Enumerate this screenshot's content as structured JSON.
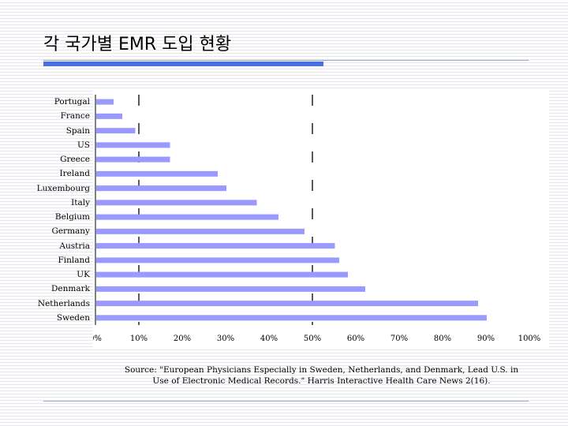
{
  "slide": {
    "title": "각 국가별 EMR 도입 현황",
    "source_line1": "Source: \"European Physicians Especially in Sweden, Netherlands, and Denmark, Lead U.S. in",
    "source_line2": "Use of Electronic Medical Records.\" Harris Interactive Health Care News 2(16)."
  },
  "colors": {
    "bar": "#9999ff",
    "accent": "#4a6fe0",
    "reference_line": "#000000"
  },
  "chart_data": {
    "type": "bar",
    "orientation": "horizontal",
    "title": "",
    "xlabel": "",
    "ylabel": "",
    "categories": [
      "Portugal",
      "France",
      "Spain",
      "US",
      "Greece",
      "Ireland",
      "Luxembourg",
      "Italy",
      "Belgium",
      "Germany",
      "Austria",
      "Finland",
      "UK",
      "Denmark",
      "Netherlands",
      "Sweden"
    ],
    "values": [
      4,
      6,
      9,
      17,
      17,
      28,
      30,
      37,
      42,
      48,
      55,
      56,
      58,
      62,
      88,
      90
    ],
    "value_unit": "%",
    "xlim": [
      0,
      100
    ],
    "x_ticks": [
      "0%",
      "10%",
      "20%",
      "30%",
      "40%",
      "50%",
      "60%",
      "70%",
      "80%",
      "90%",
      "100%"
    ],
    "reference_lines": [
      10,
      50
    ],
    "grid": false,
    "legend": "none"
  }
}
